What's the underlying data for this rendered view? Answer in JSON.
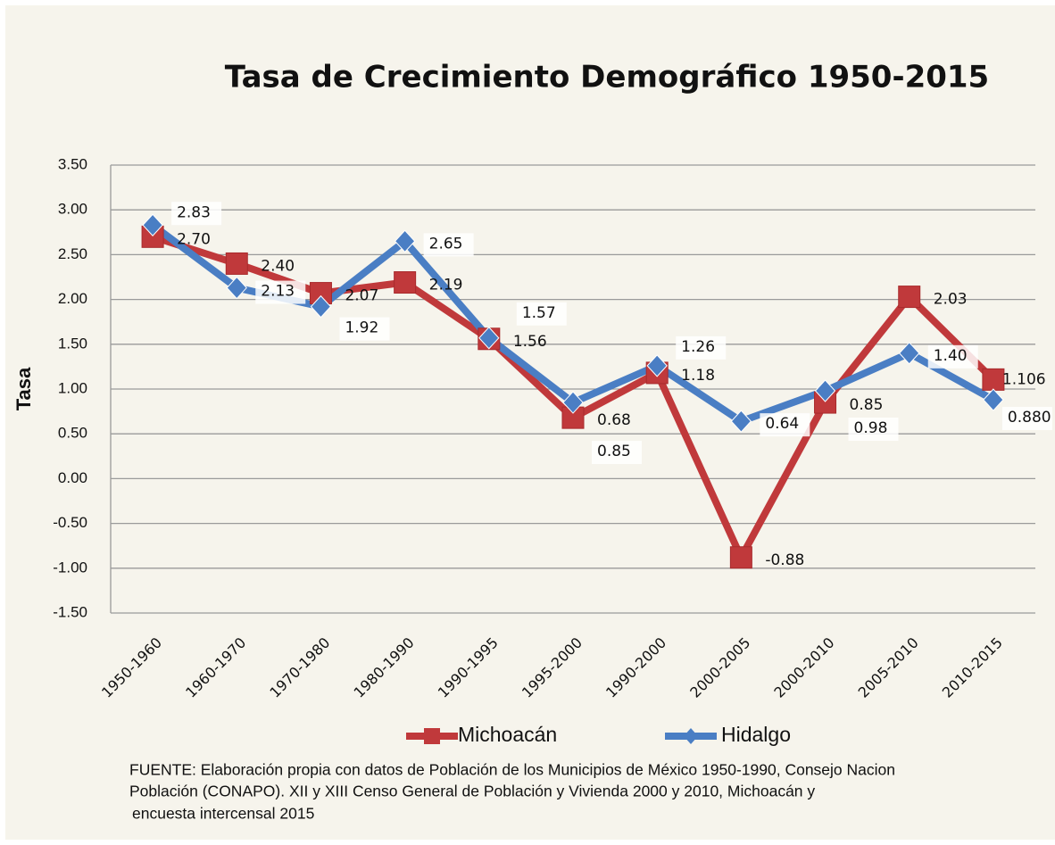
{
  "chart_data": {
    "type": "line",
    "title": "Tasa de Crecimiento Demográfico 1950-2015",
    "y_label": "Tasa",
    "categories": [
      "1950-1960",
      "1960-1970",
      "1970-1980",
      "1980-1990",
      "1990-1995",
      "1995-2000",
      "1990-2000",
      "2000-2005",
      "2000-2010",
      "2005-2010",
      "2010-2015"
    ],
    "series": [
      {
        "name": "Michoacán",
        "color": "#c0393b",
        "marker": "square",
        "values": [
          2.7,
          2.4,
          2.07,
          2.19,
          1.56,
          0.68,
          1.18,
          -0.88,
          0.85,
          2.03,
          1.106
        ],
        "value_labels": [
          "2.70",
          "2.40",
          "2.07",
          "2.19",
          "1.56",
          "0.68",
          "1.18",
          "-0.88",
          "0.85",
          "2.03",
          "1.106"
        ]
      },
      {
        "name": "Hidalgo",
        "color": "#4a7ec4",
        "marker": "diamond",
        "values": [
          2.83,
          2.13,
          1.92,
          2.65,
          1.57,
          0.85,
          1.26,
          0.64,
          0.98,
          1.4,
          0.88
        ],
        "value_labels": [
          "2.83",
          "2.13",
          "1.92",
          "2.65",
          "1.57",
          "0.85",
          "1.26",
          "0.64",
          "0.98",
          "1.40",
          "0.880"
        ]
      }
    ],
    "ylim": [
      -1.5,
      3.5
    ],
    "yticks": [
      {
        "value": -1.5,
        "label": "-1.50"
      },
      {
        "value": -1,
        "label": "-1.00"
      },
      {
        "value": -0.5,
        "label": "-0.50"
      },
      {
        "value": 0,
        "label": "0.00"
      },
      {
        "value": 0.5,
        "label": "0.50"
      },
      {
        "value": 1,
        "label": "1.00"
      },
      {
        "value": 1.5,
        "label": "1.50"
      },
      {
        "value": 2,
        "label": "2.00"
      },
      {
        "value": 2.5,
        "label": "2.50"
      },
      {
        "value": 3,
        "label": "3.00"
      },
      {
        "value": 3.5,
        "label": "3.50"
      }
    ],
    "grid": true,
    "legend": "bottom",
    "footnote": [
      "FUENTE: Elaboración propia con datos de Población de los Municipios de México 1950-1990, Consejo Nacion",
      "Población (CONAPO). XII y XIII Censo General de Población y Vivienda 2000 y 2010, Michoacán y",
      "encuesta intercensal 2015"
    ]
  }
}
